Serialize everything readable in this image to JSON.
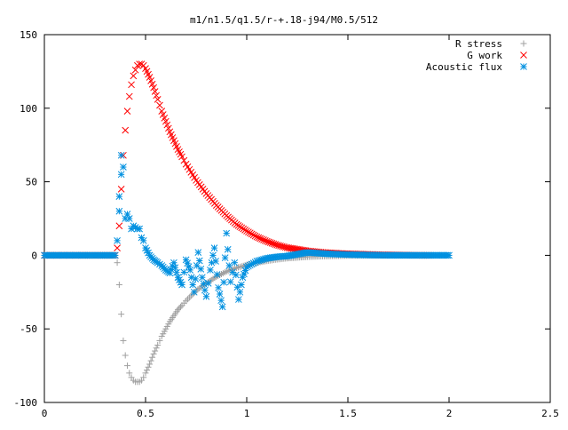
{
  "chart_data": {
    "type": "scatter",
    "title": "m1/n1.5/q1.5/r-+.18-j94/M0.5/512",
    "xlabel": "",
    "ylabel": "",
    "xlim": [
      0,
      2.5
    ],
    "ylim": [
      -100,
      150
    ],
    "xticks": [
      0,
      0.5,
      1,
      1.5,
      2,
      2.5
    ],
    "xtick_labels": [
      "0",
      "0.5",
      "1",
      "1.5",
      "2",
      "2.5"
    ],
    "yticks": [
      -100,
      -50,
      0,
      50,
      100,
      150
    ],
    "ytick_labels": [
      "-100",
      "-50",
      "0",
      "50",
      "100",
      "150"
    ],
    "grid": false,
    "legend_position": "top-right",
    "series": [
      {
        "name": "R stress",
        "marker": "plus",
        "color": "#a0a0a0",
        "x": [
          0.0,
          0.1,
          0.2,
          0.3,
          0.35,
          0.36,
          0.37,
          0.38,
          0.39,
          0.4,
          0.41,
          0.42,
          0.43,
          0.44,
          0.45,
          0.46,
          0.47,
          0.48,
          0.49,
          0.5,
          0.52,
          0.54,
          0.56,
          0.58,
          0.6,
          0.62,
          0.64,
          0.66,
          0.68,
          0.7,
          0.75,
          0.8,
          0.85,
          0.9,
          0.95,
          1.0,
          1.05,
          1.1,
          1.15,
          1.2,
          1.3,
          1.4,
          1.5,
          1.6,
          1.7,
          1.8,
          1.9,
          2.0
        ],
        "y": [
          0,
          0,
          0,
          0,
          0,
          -5,
          -20,
          -40,
          -58,
          -68,
          -75,
          -80,
          -83,
          -85,
          -86,
          -86,
          -86,
          -85,
          -83,
          -80,
          -74,
          -67,
          -61,
          -55,
          -50,
          -45,
          -41,
          -37,
          -34,
          -31,
          -24,
          -19,
          -14.5,
          -11,
          -8.5,
          -6.5,
          -5,
          -3.8,
          -2.8,
          -2,
          -1,
          -0.5,
          -0.2,
          -0.1,
          0,
          0,
          0,
          0
        ]
      },
      {
        "name": "G work",
        "marker": "cross",
        "color": "#ff0000",
        "x": [
          0.0,
          0.1,
          0.2,
          0.3,
          0.35,
          0.36,
          0.37,
          0.38,
          0.39,
          0.4,
          0.41,
          0.42,
          0.43,
          0.44,
          0.45,
          0.46,
          0.47,
          0.48,
          0.49,
          0.5,
          0.52,
          0.54,
          0.56,
          0.58,
          0.6,
          0.62,
          0.64,
          0.66,
          0.68,
          0.7,
          0.75,
          0.8,
          0.85,
          0.9,
          0.95,
          1.0,
          1.05,
          1.1,
          1.15,
          1.2,
          1.3,
          1.4,
          1.5,
          1.6,
          1.7,
          1.8,
          1.9
        ],
        "y": [
          0,
          0,
          0,
          0,
          0,
          5,
          20,
          45,
          68,
          85,
          98,
          108,
          116,
          122,
          126,
          129,
          130,
          130,
          129,
          127,
          121,
          114,
          106,
          98,
          91,
          84,
          78,
          72,
          67,
          62,
          51,
          42,
          34,
          27,
          21,
          16.5,
          12.5,
          9.5,
          7,
          5.2,
          3,
          1.7,
          1,
          0.6,
          0.3,
          0.1,
          0
        ]
      },
      {
        "name": "Acoustic flux",
        "marker": "star",
        "color": "#0090e0",
        "x": [
          0.0,
          0.1,
          0.2,
          0.3,
          0.35,
          0.36,
          0.37,
          0.37,
          0.38,
          0.38,
          0.39,
          0.4,
          0.41,
          0.42,
          0.43,
          0.44,
          0.45,
          0.46,
          0.47,
          0.48,
          0.49,
          0.5,
          0.52,
          0.54,
          0.56,
          0.58,
          0.6,
          0.62,
          0.64,
          0.66,
          0.68,
          0.7,
          0.72,
          0.74,
          0.76,
          0.78,
          0.8,
          0.82,
          0.84,
          0.86,
          0.88,
          0.9,
          0.92,
          0.94,
          0.96,
          0.98,
          1.0,
          1.05,
          1.1,
          1.15,
          1.2,
          1.3,
          1.4,
          1.5,
          1.6,
          1.7,
          1.8,
          1.9,
          2.0
        ],
        "y": [
          0,
          0,
          0,
          0,
          0,
          10,
          40,
          30,
          55,
          68,
          60,
          25,
          28,
          25,
          18,
          20,
          19,
          18,
          18,
          12,
          10,
          5,
          0,
          -3,
          -5,
          -7,
          -10,
          -12,
          -5,
          -15,
          -20,
          -3,
          -10,
          -25,
          2,
          -15,
          -28,
          -10,
          5,
          -22,
          -35,
          15,
          -18,
          -5,
          -30,
          -15,
          -8,
          -4,
          -2,
          -1,
          -0.5,
          2,
          1,
          0.5,
          0.2,
          0,
          0,
          0,
          0
        ]
      }
    ]
  }
}
